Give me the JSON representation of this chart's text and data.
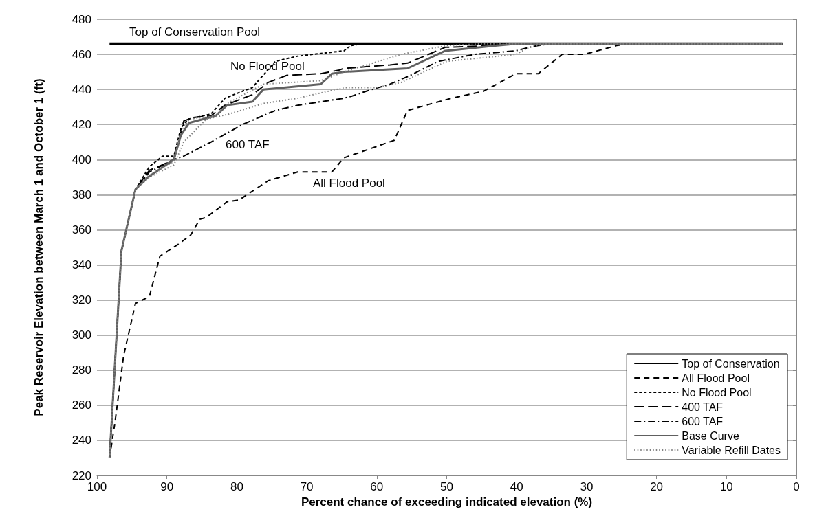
{
  "chart_data": {
    "type": "line",
    "xlabel": "Percent chance of exceeding indicated elevation (%)",
    "ylabel": "Peak Reservoir Elevation between March 1 and October 1 (ft)",
    "xlim": [
      100,
      0
    ],
    "xticks": [
      100,
      90,
      80,
      70,
      60,
      50,
      40,
      30,
      20,
      10,
      0
    ],
    "ylim": [
      220,
      480
    ],
    "yticks": [
      220,
      240,
      260,
      280,
      300,
      320,
      340,
      360,
      380,
      400,
      420,
      440,
      460,
      480
    ],
    "grid": "y",
    "legend": "bottom right",
    "marker": "none",
    "annotations": [
      "Top of Conservation Pool",
      "No Flood Pool",
      "600 TAF",
      "All Flood Pool"
    ],
    "series": [
      {
        "name": "Top of Conservation",
        "color": "#000000",
        "line_style": "solid",
        "x": [
          98.2,
          2
        ],
        "values": [
          466,
          466
        ]
      },
      {
        "name": "All Flood Pool",
        "color": "#000000",
        "line_style": "dashed",
        "x": [
          98.2,
          97.4,
          96.2,
          94.5,
          92.5,
          91,
          88.3,
          86.6,
          85.3,
          84.4,
          81.4,
          79.7,
          75.5,
          71.3,
          67,
          66.4,
          64.7,
          57.5,
          56.5,
          55.6,
          53.9,
          49.3,
          44.7,
          42.4,
          40.1,
          36.9,
          33.5,
          30.3,
          25.7,
          24,
          2
        ],
        "values": [
          230,
          251,
          288,
          318,
          322,
          345,
          352,
          357,
          366,
          367,
          376,
          377,
          388,
          393,
          393,
          393,
          401,
          411,
          420,
          428,
          430,
          435,
          439,
          444,
          449,
          449,
          460,
          460,
          465,
          466,
          466
        ]
      },
      {
        "name": "No Flood Pool",
        "color": "#000000",
        "line_style": "shortdash",
        "x": [
          98.2,
          96.5,
          94.5,
          92.5,
          90.6,
          89,
          88,
          87,
          83.7,
          81.7,
          79.2,
          77.8,
          74.5,
          71.3,
          64.7,
          63.7,
          62,
          2
        ],
        "values": [
          230,
          348,
          383,
          396,
          402,
          402,
          418,
          423,
          426,
          435,
          439,
          441,
          456,
          459,
          462,
          465,
          466,
          466
        ]
      },
      {
        "name": "400 TAF",
        "color": "#000000",
        "line_style": "longdash",
        "x": [
          98.2,
          96.5,
          94.5,
          92.5,
          91.2,
          89,
          87.6,
          86.3,
          83.7,
          81.7,
          77.8,
          75.5,
          72.9,
          68,
          65.4,
          64.7,
          58.1,
          55.6,
          50.2,
          43.4,
          41,
          2
        ],
        "values": [
          230,
          348,
          383,
          394,
          396,
          400,
          422,
          424,
          425,
          431,
          437,
          444,
          448,
          449,
          451,
          452,
          454,
          455,
          464,
          465,
          466,
          466
        ]
      },
      {
        "name": "600 TAF",
        "color": "#000000",
        "line_style": "dashdot",
        "x": [
          98.2,
          96.5,
          94.5,
          92.5,
          89,
          87.6,
          83.7,
          79.2,
          74.5,
          71.3,
          64.7,
          63.7,
          61.5,
          58.1,
          55.2,
          51.2,
          46,
          40.1,
          38.2,
          36.9,
          35,
          2
        ],
        "values": [
          230,
          348,
          383,
          393,
          400,
          402,
          410,
          420,
          428,
          431,
          435,
          436,
          439,
          443,
          448,
          456,
          460,
          462,
          464,
          465,
          466,
          466
        ]
      },
      {
        "name": "Base Curve",
        "color": "#606060",
        "line_style": "solid",
        "x": [
          98.2,
          96.5,
          94.5,
          92.7,
          89,
          88,
          86.8,
          83,
          81.4,
          77.8,
          76.2,
          68,
          66.4,
          64.7,
          55.6,
          50.2,
          42.8,
          40,
          2
        ],
        "values": [
          230,
          348,
          383,
          390,
          400,
          414,
          421,
          425,
          431,
          433,
          440,
          443,
          449,
          450,
          452,
          462,
          465,
          466,
          466
        ]
      },
      {
        "name": "Variable Refill Dates",
        "color": "#808080",
        "line_style": "dotted",
        "x": [
          98.2,
          96.5,
          94.5,
          92.5,
          89,
          88,
          86.8,
          83,
          81.4,
          76.2,
          68,
          64.7,
          56.5,
          50,
          45,
          2
        ],
        "values": [
          230,
          348,
          383,
          391,
          399,
          416,
          423,
          425,
          432,
          443,
          445,
          450,
          460,
          465,
          466,
          466
        ]
      },
      {
        "color": "#808080",
        "line_style": "dotted",
        "x": [
          98.2,
          96.5,
          94.5,
          92.5,
          89,
          87.6,
          84.4,
          81.1,
          76.2,
          71.3,
          64.7,
          60.1,
          56.5,
          50,
          40.1,
          38.2,
          36,
          2
        ],
        "values": [
          230,
          348,
          383,
          390,
          397,
          410,
          423,
          426,
          432,
          435,
          441,
          441,
          444,
          456,
          460,
          464,
          466,
          466
        ]
      }
    ]
  }
}
